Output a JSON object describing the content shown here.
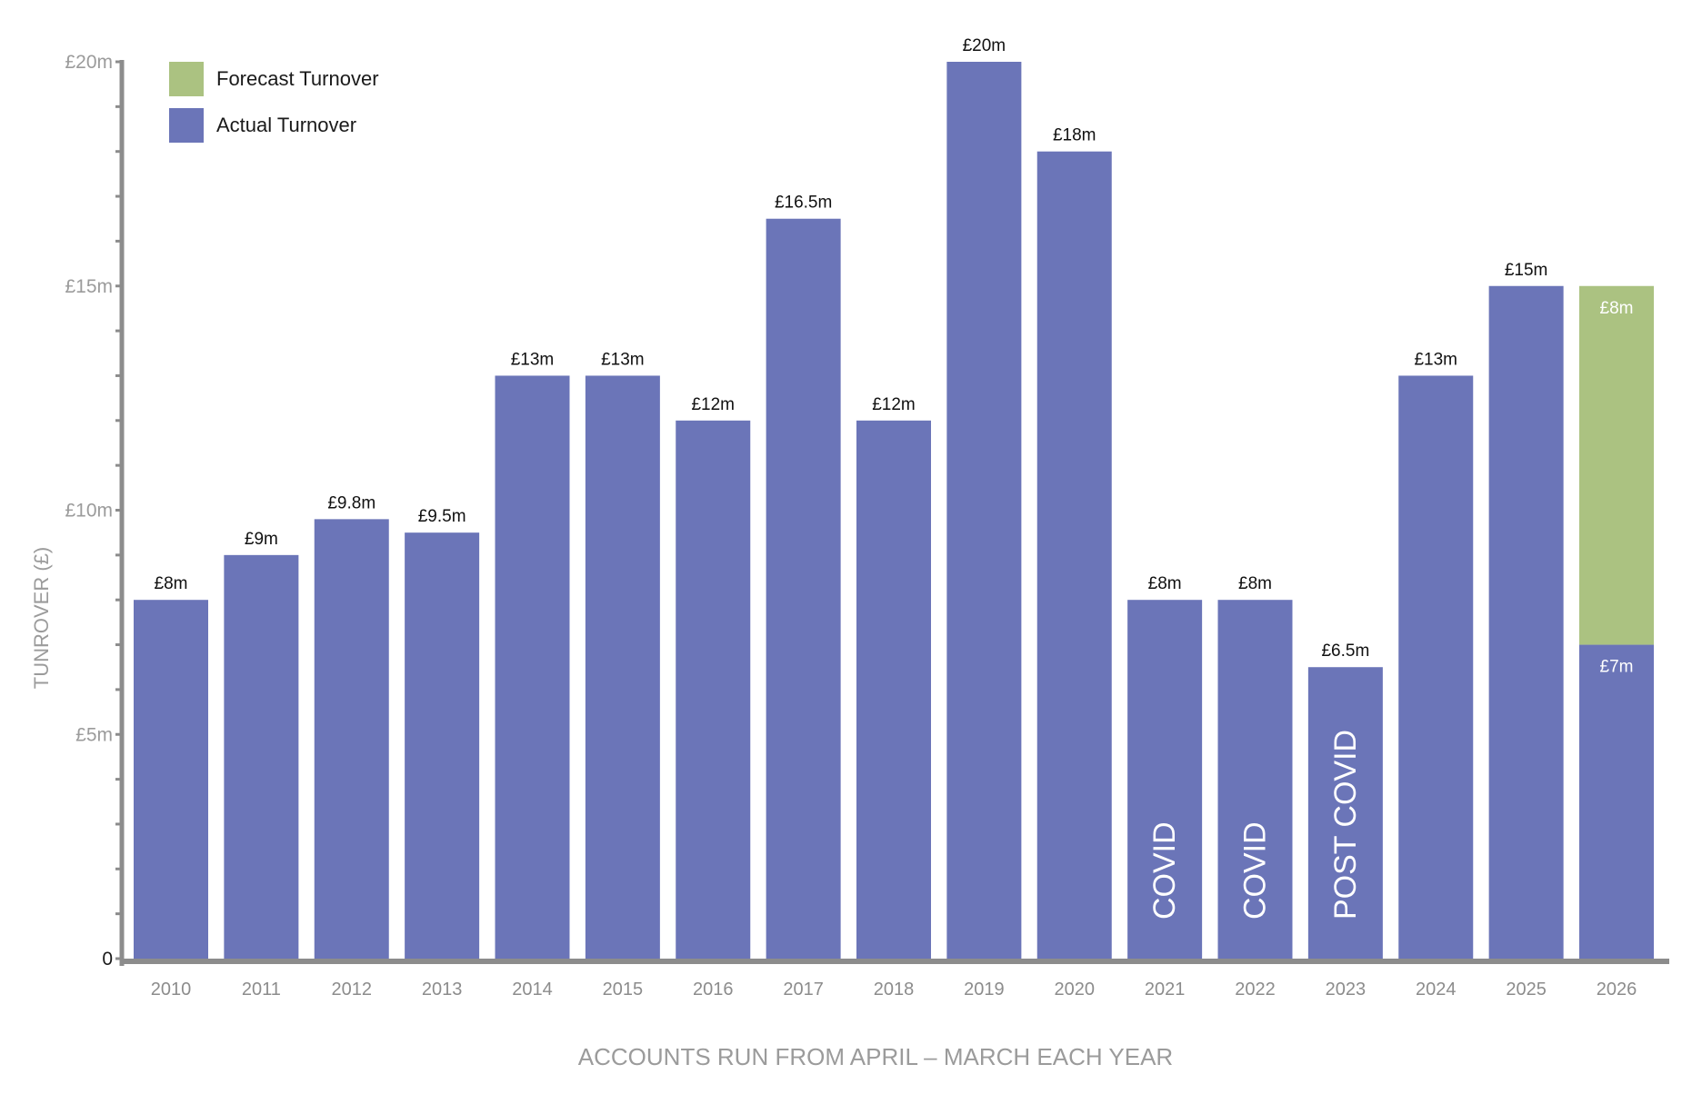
{
  "chart_data": {
    "type": "bar",
    "stacked": true,
    "title": "",
    "xlabel": "ACCOUNTS RUN FROM APRIL – MARCH EACH YEAR",
    "ylabel": "TUNROVER (£)",
    "ylim": [
      0,
      20
    ],
    "yticks": [
      {
        "value": 0,
        "label": "0"
      },
      {
        "value": 5,
        "label": "£5m"
      },
      {
        "value": 10,
        "label": "£10m"
      },
      {
        "value": 15,
        "label": "£15m"
      },
      {
        "value": 20,
        "label": "£20m"
      }
    ],
    "categories": [
      "2010",
      "2011",
      "2012",
      "2013",
      "2014",
      "2015",
      "2016",
      "2017",
      "2018",
      "2019",
      "2020",
      "2021",
      "2022",
      "2023",
      "2024",
      "2025",
      "2026"
    ],
    "series": [
      {
        "name": "Actual Turnover",
        "color": "#6b75b8",
        "values": [
          8,
          9,
          9.8,
          9.5,
          13,
          13,
          12,
          16.5,
          12,
          20,
          18,
          8,
          8,
          6.5,
          13,
          15,
          7
        ]
      },
      {
        "name": "Forecast Turnover",
        "color": "#abc281",
        "values": [
          0,
          0,
          0,
          0,
          0,
          0,
          0,
          0,
          0,
          0,
          0,
          0,
          0,
          0,
          0,
          0,
          8
        ]
      }
    ],
    "top_labels": [
      "£8m",
      "£9m",
      "£9.8m",
      "£9.5m",
      "£13m",
      "£13m",
      "£12m",
      "£16.5m",
      "£12m",
      "£20m",
      "£18m",
      "£8m",
      "£8m",
      "£6.5m",
      "£13m",
      "£15m",
      ""
    ],
    "segment_labels": [
      {
        "category": "2026",
        "series": "Actual Turnover",
        "text": "£7m"
      },
      {
        "category": "2026",
        "series": "Forecast Turnover",
        "text": "£8m"
      }
    ],
    "annotations": [
      {
        "category": "2021",
        "text": "COVID"
      },
      {
        "category": "2022",
        "text": "COVID"
      },
      {
        "category": "2023",
        "text": "POST COVID"
      }
    ],
    "legend": {
      "position": "top-left",
      "items": [
        {
          "label": "Forecast Turnover",
          "color": "#abc281"
        },
        {
          "label": "Actual Turnover",
          "color": "#6b75b8"
        }
      ]
    }
  }
}
